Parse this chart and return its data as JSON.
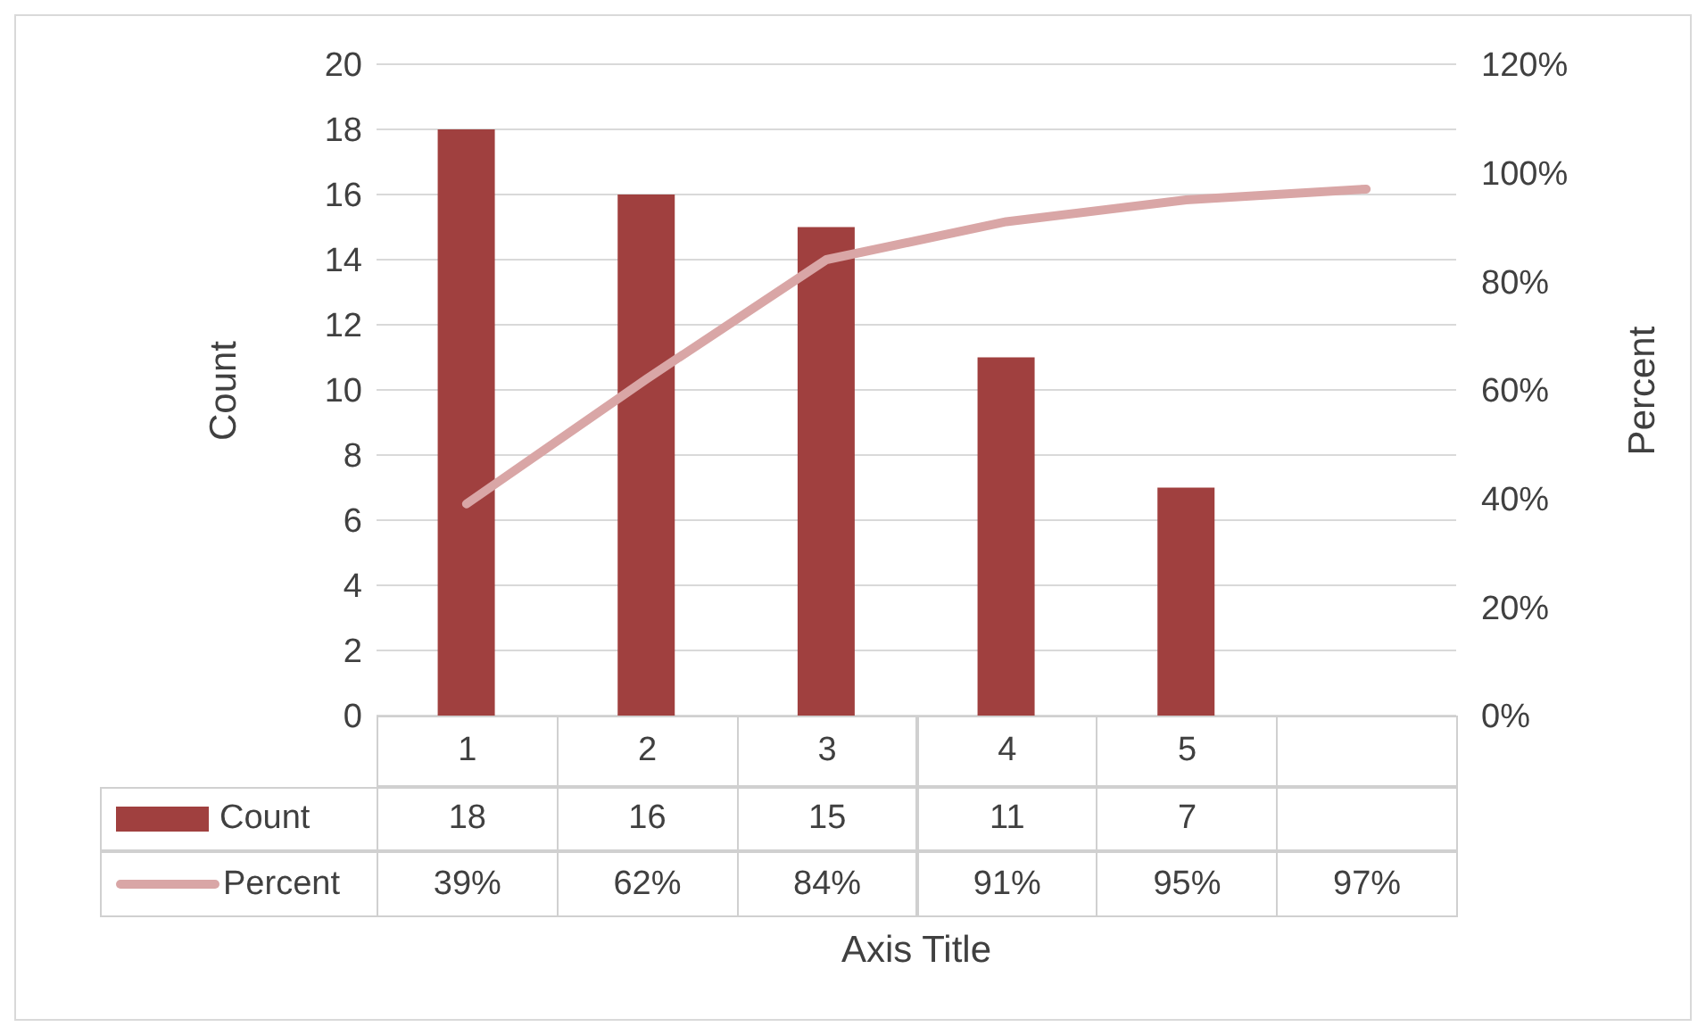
{
  "chart_data": {
    "type": "bar",
    "categories": [
      "1",
      "2",
      "3",
      "4",
      "5",
      null
    ],
    "series": [
      {
        "name": "Count",
        "color": "#a0403f",
        "values": [
          18,
          16,
          15,
          11,
          7,
          null
        ],
        "value_labels": [
          "18",
          "16",
          "15",
          "11",
          "7",
          null
        ]
      },
      {
        "name": "Percent",
        "type": "line",
        "axis": "y2",
        "color": "#d9a6a6",
        "values": [
          39,
          62,
          84,
          91,
          95,
          97
        ],
        "value_labels": [
          "39%",
          "62%",
          "84%",
          "91%",
          "95%",
          "97%"
        ]
      }
    ],
    "xlabel": "Axis Title",
    "ylabel": "Count",
    "y2label": "Percent",
    "ylim": [
      0,
      20
    ],
    "yticks": [
      0,
      2,
      4,
      6,
      8,
      10,
      12,
      14,
      16,
      18,
      20
    ],
    "y2lim": [
      0,
      120
    ],
    "y2ticks": [
      {
        "value": 0,
        "label": "0%"
      },
      {
        "value": 20,
        "label": "20%"
      },
      {
        "value": 40,
        "label": "40%"
      },
      {
        "value": 60,
        "label": "60%"
      },
      {
        "value": 80,
        "label": "80%"
      },
      {
        "value": 100,
        "label": "100%"
      },
      {
        "value": 120,
        "label": "120%"
      }
    ],
    "grid": "y",
    "legend": "bottom",
    "marker": "none",
    "line_style": "solid"
  }
}
